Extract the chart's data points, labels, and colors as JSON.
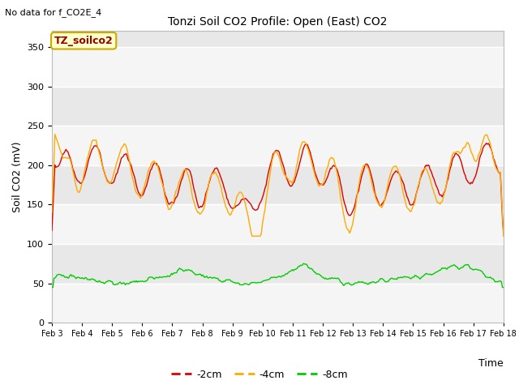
{
  "title": "Tonzi Soil CO2 Profile: Open (East) CO2",
  "no_data_text": "No data for f_CO2E_4",
  "legend_box_text": "TZ_soilco2",
  "ylabel": "Soil CO2 (mV)",
  "xlabel": "Time",
  "yticks": [
    0,
    50,
    100,
    150,
    200,
    250,
    300,
    350
  ],
  "ylim": [
    0,
    370
  ],
  "xtick_labels": [
    "Feb 3",
    "Feb 4",
    "Feb 5",
    "Feb 6",
    "Feb 7",
    "Feb 8",
    "Feb 9",
    "Feb 10",
    "Feb 11",
    "Feb 12",
    "Feb 13",
    "Feb 14",
    "Feb 15",
    "Feb 16",
    "Feb 17",
    "Feb 18"
  ],
  "line_colors": {
    "m2cm": "#dd0000",
    "m4cm": "#ffaa00",
    "m8cm": "#00cc00"
  },
  "legend_entries": [
    "-2cm",
    "-4cm",
    "-8cm"
  ],
  "n_points": 450,
  "plot_bg": "#e8e8e8",
  "stripe_color": "#d0d0d0",
  "figsize": [
    6.4,
    4.8
  ],
  "dpi": 100
}
